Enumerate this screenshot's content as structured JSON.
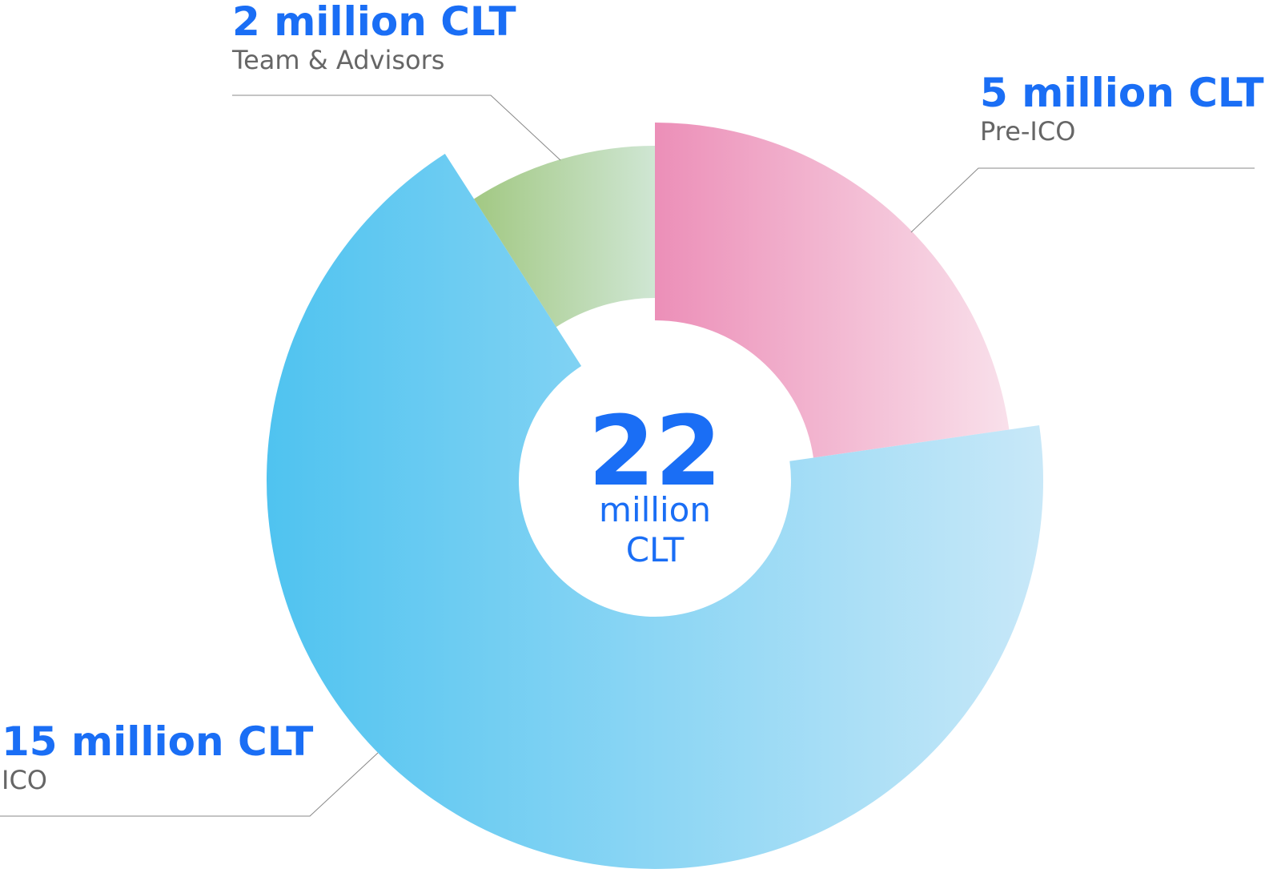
{
  "chart_data": {
    "type": "donut",
    "categories": [
      "Pre-ICO",
      "ICO",
      "Team & Advisors"
    ],
    "values": [
      5,
      15,
      2
    ],
    "value_labels": [
      "5 million CLT",
      "15 million CLT",
      "2 million CLT"
    ],
    "colors": [
      "#ec8fb8",
      "#4fc3f0",
      "#9dc57a"
    ],
    "gradient_end_colors": [
      "#f9e1eb",
      "#c8e8f8",
      "#cfe6d3"
    ],
    "total": 22,
    "total_label": "million CLT"
  }
}
